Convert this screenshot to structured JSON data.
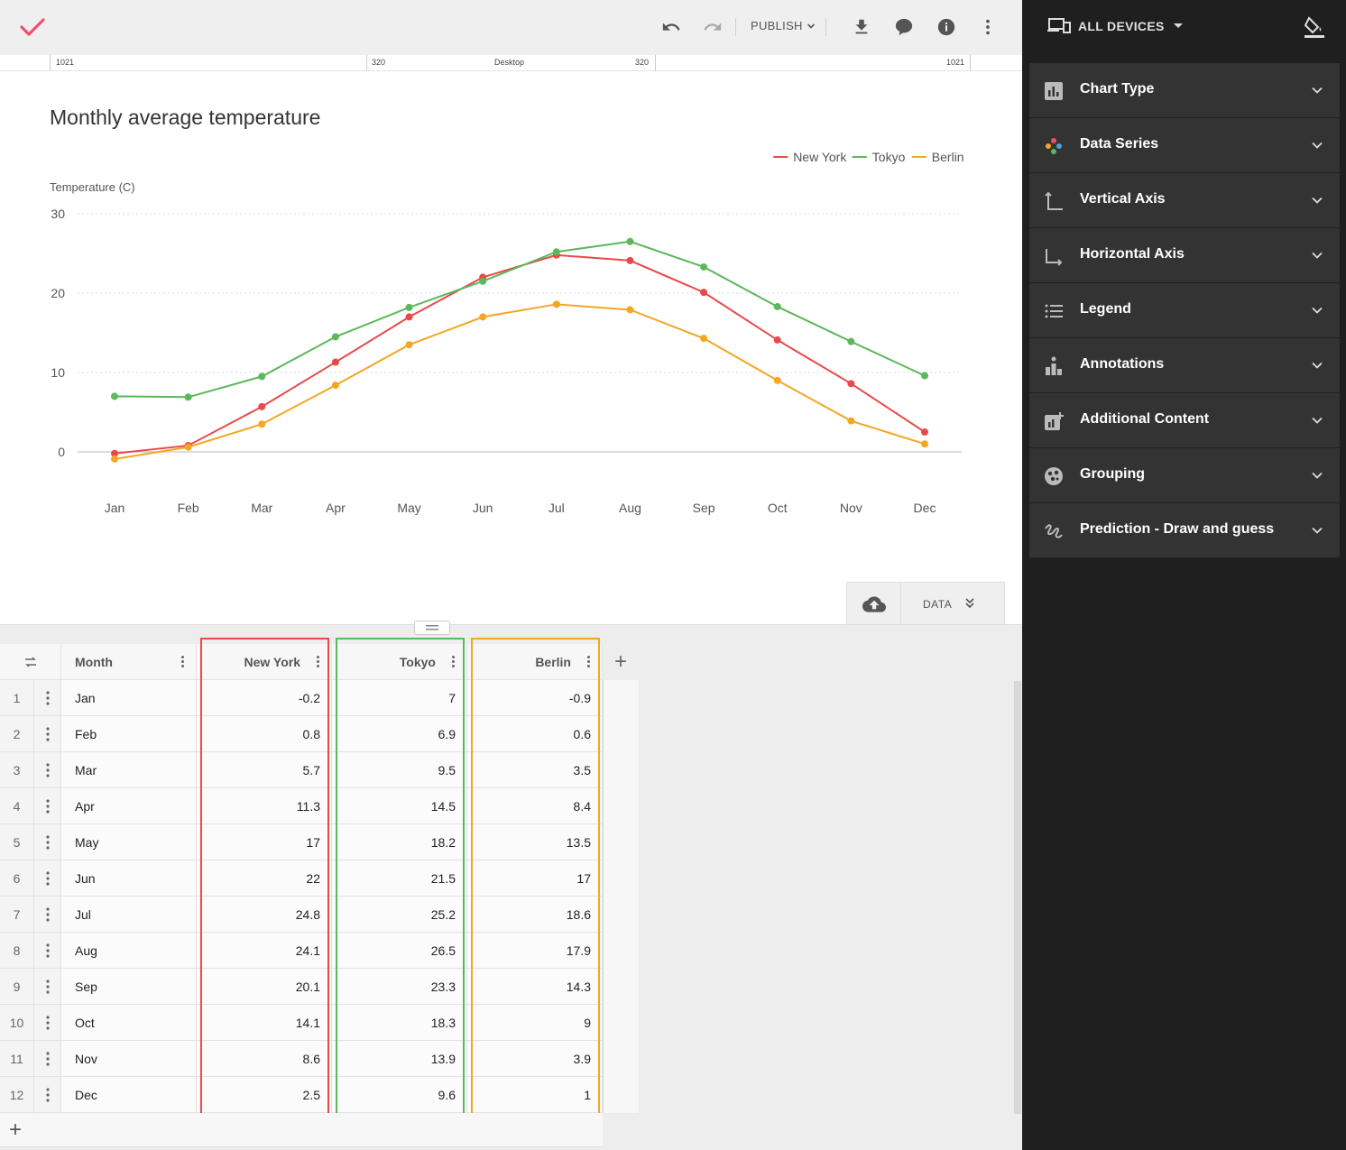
{
  "toolbar": {
    "publish_label": "PUBLISH"
  },
  "ruler": {
    "left_outer": "1021",
    "left_inner": "320",
    "center": "Desktop",
    "right_inner": "320",
    "right_outer": "1021"
  },
  "chart_title": "Monthly average temperature",
  "chart_data": {
    "type": "line",
    "title": "Monthly average temperature",
    "xlabel": "",
    "ylabel": "Temperature (C)",
    "ylim": [
      0,
      30
    ],
    "yticks": [
      0,
      10,
      20,
      30
    ],
    "grid": true,
    "legend_position": "top-right",
    "categories": [
      "Jan",
      "Feb",
      "Mar",
      "Apr",
      "May",
      "Jun",
      "Jul",
      "Aug",
      "Sep",
      "Oct",
      "Nov",
      "Dec"
    ],
    "series": [
      {
        "name": "New York",
        "color": "#e8494b",
        "values": [
          -0.2,
          0.8,
          5.7,
          11.3,
          17,
          22,
          24.8,
          24.1,
          20.1,
          14.1,
          8.6,
          2.5
        ]
      },
      {
        "name": "Tokyo",
        "color": "#5cb85c",
        "values": [
          7,
          6.9,
          9.5,
          14.5,
          18.2,
          21.5,
          25.2,
          26.5,
          23.3,
          18.3,
          13.9,
          9.6
        ]
      },
      {
        "name": "Berlin",
        "color": "#f5a623",
        "values": [
          -0.9,
          0.6,
          3.5,
          8.4,
          13.5,
          17,
          18.6,
          17.9,
          14.3,
          9,
          3.9,
          1
        ]
      }
    ]
  },
  "data_tab": {
    "label": "DATA"
  },
  "table": {
    "headers": [
      "Month",
      "New York",
      "Tokyo",
      "Berlin"
    ],
    "rows": [
      {
        "num": "1",
        "month": "Jan",
        "ny": "-0.2",
        "tokyo": "7",
        "berlin": "-0.9"
      },
      {
        "num": "2",
        "month": "Feb",
        "ny": "0.8",
        "tokyo": "6.9",
        "berlin": "0.6"
      },
      {
        "num": "3",
        "month": "Mar",
        "ny": "5.7",
        "tokyo": "9.5",
        "berlin": "3.5"
      },
      {
        "num": "4",
        "month": "Apr",
        "ny": "11.3",
        "tokyo": "14.5",
        "berlin": "8.4"
      },
      {
        "num": "5",
        "month": "May",
        "ny": "17",
        "tokyo": "18.2",
        "berlin": "13.5"
      },
      {
        "num": "6",
        "month": "Jun",
        "ny": "22",
        "tokyo": "21.5",
        "berlin": "17"
      },
      {
        "num": "7",
        "month": "Jul",
        "ny": "24.8",
        "tokyo": "25.2",
        "berlin": "18.6"
      },
      {
        "num": "8",
        "month": "Aug",
        "ny": "24.1",
        "tokyo": "26.5",
        "berlin": "17.9"
      },
      {
        "num": "9",
        "month": "Sep",
        "ny": "20.1",
        "tokyo": "23.3",
        "berlin": "14.3"
      },
      {
        "num": "10",
        "month": "Oct",
        "ny": "14.1",
        "tokyo": "18.3",
        "berlin": "9"
      },
      {
        "num": "11",
        "month": "Nov",
        "ny": "8.6",
        "tokyo": "13.9",
        "berlin": "3.9"
      },
      {
        "num": "12",
        "month": "Dec",
        "ny": "2.5",
        "tokyo": "9.6",
        "berlin": "1"
      }
    ],
    "outline_colors": {
      "ny": "#e8494b",
      "tokyo": "#5cb85c",
      "berlin": "#f5a623"
    }
  },
  "panel": {
    "devices_label": "ALL DEVICES",
    "sections": [
      {
        "label": "Chart Type",
        "icon": "bar-chart-icon"
      },
      {
        "label": "Data Series",
        "icon": "palette-dots-icon"
      },
      {
        "label": "Vertical Axis",
        "icon": "vertical-axis-icon"
      },
      {
        "label": "Horizontal Axis",
        "icon": "horizontal-axis-icon"
      },
      {
        "label": "Legend",
        "icon": "list-icon"
      },
      {
        "label": "Annotations",
        "icon": "annotations-icon"
      },
      {
        "label": "Additional Content",
        "icon": "add-chart-icon"
      },
      {
        "label": "Grouping",
        "icon": "grouping-icon"
      },
      {
        "label": "Prediction - Draw and guess",
        "icon": "draw-icon"
      }
    ]
  },
  "colors": {
    "accent": "#f0506e",
    "panel_bg": "#1f1f1f",
    "panel_item": "#333333"
  }
}
